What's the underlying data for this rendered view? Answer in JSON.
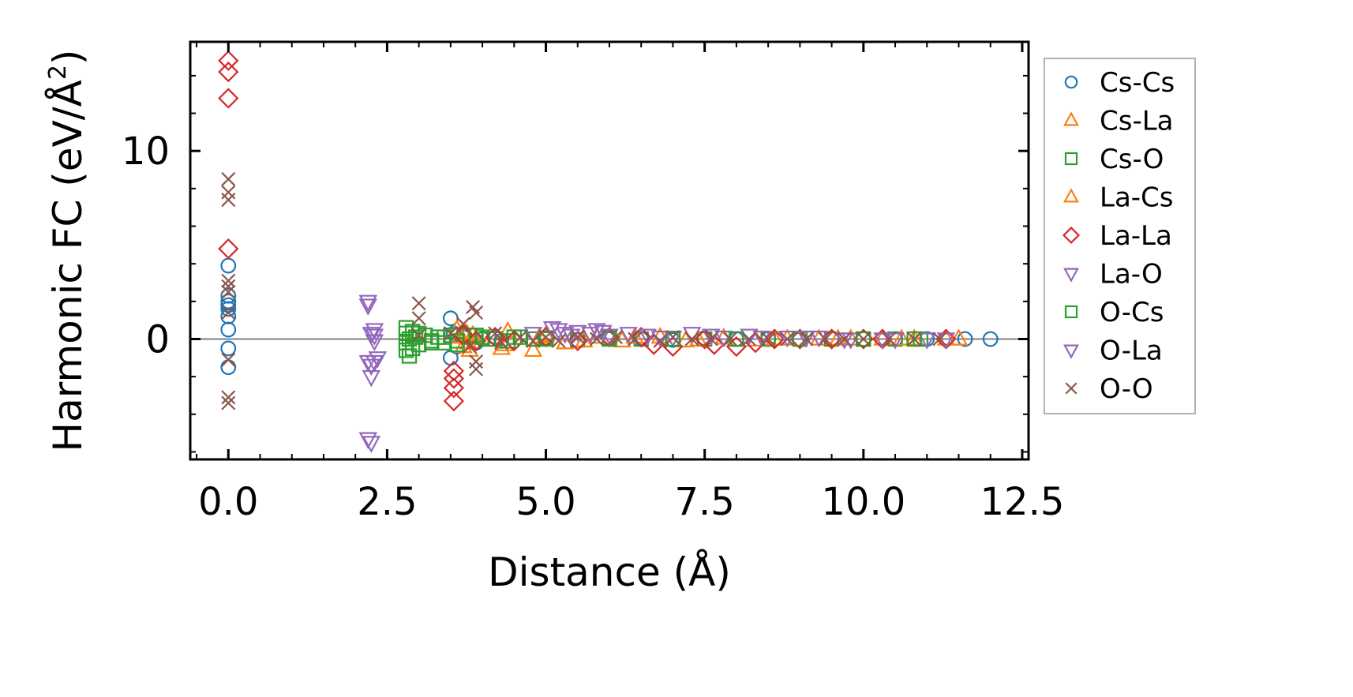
{
  "chart_data": {
    "type": "scatter",
    "title": "",
    "xlabel": "Distance (Å)",
    "ylabel_main": "Harmonic FC (eV/Å",
    "ylabel_sup": "2",
    "ylabel_close": ")",
    "xlim": [
      -0.6,
      12.6
    ],
    "ylim": [
      -6.4,
      15.8
    ],
    "xticks": [
      0.0,
      2.5,
      5.0,
      7.5,
      10.0,
      12.5
    ],
    "xtick_labels": [
      "0.0",
      "2.5",
      "5.0",
      "7.5",
      "10.0",
      "12.5"
    ],
    "yticks": [
      0,
      10
    ],
    "ytick_labels": [
      "0",
      "10"
    ],
    "zero_line": true,
    "legend_position": "outside-right",
    "series": [
      {
        "name": "Cs-Cs",
        "color": "#1f77b4",
        "marker": "circle",
        "x": [
          0,
          0,
          0,
          0,
          0,
          0,
          0,
          0,
          0,
          3.5,
          3.5,
          3.55,
          3.6,
          3.7,
          3.9,
          4.0,
          4.2,
          4.3,
          5.0,
          5.5,
          6.0,
          6.5,
          7.0,
          7.5,
          8.0,
          8.5,
          9.0,
          9.5,
          10.0,
          10.5,
          11.0,
          11.6,
          12.0
        ],
        "y": [
          3.9,
          2.3,
          2.0,
          1.6,
          1.2,
          0.5,
          -0.5,
          -1.5,
          1.8,
          1.1,
          -1.0,
          0.3,
          -0.4,
          0.1,
          -0.2,
          0.0,
          0.1,
          -0.1,
          0.05,
          -0.05,
          0.05,
          0.0,
          -0.05,
          0.05,
          0.0,
          0.0,
          -0.03,
          0.03,
          0.0,
          0.0,
          0.0,
          0.0,
          0.0
        ]
      },
      {
        "name": "Cs-La",
        "color": "#ff7f0e",
        "marker": "triangle-up",
        "x": [
          3.6,
          3.7,
          3.75,
          3.8,
          3.85,
          4.3,
          4.4,
          4.8,
          5.0,
          5.3,
          5.8,
          6.2,
          6.8,
          7.2,
          7.8,
          8.3,
          8.8,
          9.3,
          9.8,
          10.3,
          10.8,
          11.5
        ],
        "y": [
          0.5,
          -0.4,
          0.3,
          -0.6,
          0.2,
          -0.5,
          0.4,
          -0.6,
          0.2,
          -0.2,
          0.1,
          -0.1,
          0.1,
          -0.1,
          0.05,
          -0.05,
          0.0,
          0.0,
          0.0,
          0.0,
          0.0,
          0.0
        ]
      },
      {
        "name": "Cs-O",
        "color": "#2ca02c",
        "marker": "square",
        "x": [
          2.8,
          2.8,
          2.8,
          2.8,
          2.85,
          2.85,
          2.9,
          2.95,
          3.0,
          3.1,
          3.2,
          3.3,
          3.4,
          3.5,
          3.6,
          3.8,
          4.0,
          4.2,
          4.4,
          4.6,
          4.8,
          5.0,
          5.5,
          6.0,
          6.5,
          7.0,
          7.5,
          8.0,
          8.5,
          9.0,
          9.5,
          10.0,
          10.5,
          10.9
        ],
        "y": [
          0.6,
          0.3,
          -0.2,
          -0.6,
          0.0,
          -0.9,
          0.4,
          0.1,
          -0.3,
          0.2,
          -0.1,
          0.1,
          -0.2,
          0.2,
          -0.3,
          0.2,
          0.1,
          0.0,
          -0.1,
          0.1,
          0.0,
          0.05,
          -0.05,
          0.05,
          0.0,
          0.0,
          0.0,
          0.0,
          0.0,
          0.0,
          0.0,
          0.0,
          0.0,
          0.0
        ]
      },
      {
        "name": "La-Cs",
        "color": "#ff7f0e",
        "marker": "triangle-up",
        "x": [
          3.65,
          3.78,
          4.35,
          4.9,
          5.6,
          6.4,
          7.4,
          8.6,
          9.6,
          10.6,
          11.3
        ],
        "y": [
          0.1,
          -0.2,
          -0.3,
          0.1,
          -0.1,
          0.1,
          -0.05,
          0.0,
          0.0,
          0.0,
          0.0
        ]
      },
      {
        "name": "La-La",
        "color": "#d62728",
        "marker": "diamond",
        "x": [
          0,
          0,
          0,
          0,
          3.55,
          3.55,
          3.55,
          3.55,
          3.7,
          3.9,
          4.2,
          4.5,
          5.0,
          5.5,
          6.0,
          6.5,
          6.7,
          7.0,
          7.5,
          7.65,
          8.0,
          8.3,
          8.6,
          9.0,
          9.5,
          10.0,
          10.3,
          11.3
        ],
        "y": [
          14.8,
          14.2,
          12.8,
          4.8,
          -1.7,
          -2.1,
          -2.6,
          -3.3,
          0.2,
          -0.1,
          0.1,
          -0.1,
          0.1,
          -0.1,
          0.1,
          0.1,
          -0.3,
          -0.4,
          0.0,
          -0.3,
          -0.4,
          -0.2,
          0.0,
          0.0,
          0.0,
          0.0,
          0.0,
          0.0
        ]
      },
      {
        "name": "La-O",
        "color": "#9467bd",
        "marker": "triangle-down",
        "x": [
          2.2,
          2.2,
          2.2,
          2.25,
          2.25,
          2.3,
          2.3,
          2.3,
          2.35,
          2.2,
          2.25,
          5.2,
          5.3,
          5.5,
          5.7,
          5.8,
          6.0,
          6.3,
          6.6,
          7.0,
          7.3,
          7.8,
          8.2,
          8.8,
          9.3,
          9.8,
          10.3,
          11.0
        ],
        "y": [
          2.0,
          1.8,
          -1.2,
          -1.4,
          -2.0,
          0.5,
          0.2,
          -0.1,
          -1.0,
          -5.3,
          -5.5,
          0.5,
          0.3,
          0.4,
          0.3,
          0.5,
          0.2,
          0.3,
          0.2,
          0.1,
          0.3,
          0.1,
          0.2,
          0.1,
          0.1,
          0.0,
          0.0,
          0.0
        ]
      },
      {
        "name": "O-Cs",
        "color": "#2ca02c",
        "marker": "square",
        "x": [
          2.9,
          3.0,
          3.2,
          3.4,
          3.6,
          3.9,
          4.1,
          4.5,
          5.0,
          6.0,
          7.0,
          8.0,
          9.0,
          10.0,
          10.8
        ],
        "y": [
          -0.5,
          0.3,
          -0.2,
          0.1,
          -0.1,
          0.2,
          0.0,
          0.1,
          0.0,
          0.0,
          0.0,
          0.0,
          0.0,
          0.0,
          0.0
        ]
      },
      {
        "name": "O-La",
        "color": "#9467bd",
        "marker": "triangle-down",
        "x": [
          2.25,
          2.3,
          4.8,
          5.1,
          5.4,
          5.9,
          6.8,
          7.6,
          8.4,
          9.1,
          9.7,
          10.5,
          11.3
        ],
        "y": [
          0.3,
          -1.2,
          0.3,
          0.6,
          0.2,
          0.4,
          0.1,
          0.2,
          0.1,
          0.1,
          0.0,
          0.0,
          0.0
        ]
      },
      {
        "name": "O-O",
        "color": "#8c564b",
        "marker": "x",
        "x": [
          0,
          0,
          0,
          0,
          0,
          0,
          0,
          0,
          0,
          0,
          3.0,
          3.0,
          3.0,
          3.5,
          3.7,
          3.8,
          3.85,
          3.9,
          3.9,
          3.9,
          4.2,
          4.3,
          4.6,
          4.8,
          5.0,
          5.2,
          5.5,
          5.8,
          6.1,
          6.4,
          6.8,
          7.0,
          7.3,
          7.6,
          7.9,
          8.2,
          8.5,
          8.8,
          9.1,
          9.4,
          9.7,
          10.0,
          10.4,
          10.8,
          11.2
        ],
        "y": [
          8.5,
          7.8,
          7.4,
          3.1,
          2.8,
          2.5,
          1.4,
          -3.1,
          -3.4,
          -1.1,
          1.9,
          1.1,
          0.2,
          0.3,
          0.8,
          -0.4,
          1.7,
          1.4,
          -1.2,
          -1.6,
          0.3,
          -0.2,
          0.1,
          -0.1,
          0.1,
          -0.1,
          0.1,
          0.0,
          0.1,
          0.0,
          -0.1,
          0.1,
          0.0,
          0.0,
          0.0,
          0.0,
          0.0,
          0.0,
          0.0,
          0.0,
          0.0,
          0.0,
          0.0,
          0.0,
          0.0
        ]
      }
    ]
  }
}
